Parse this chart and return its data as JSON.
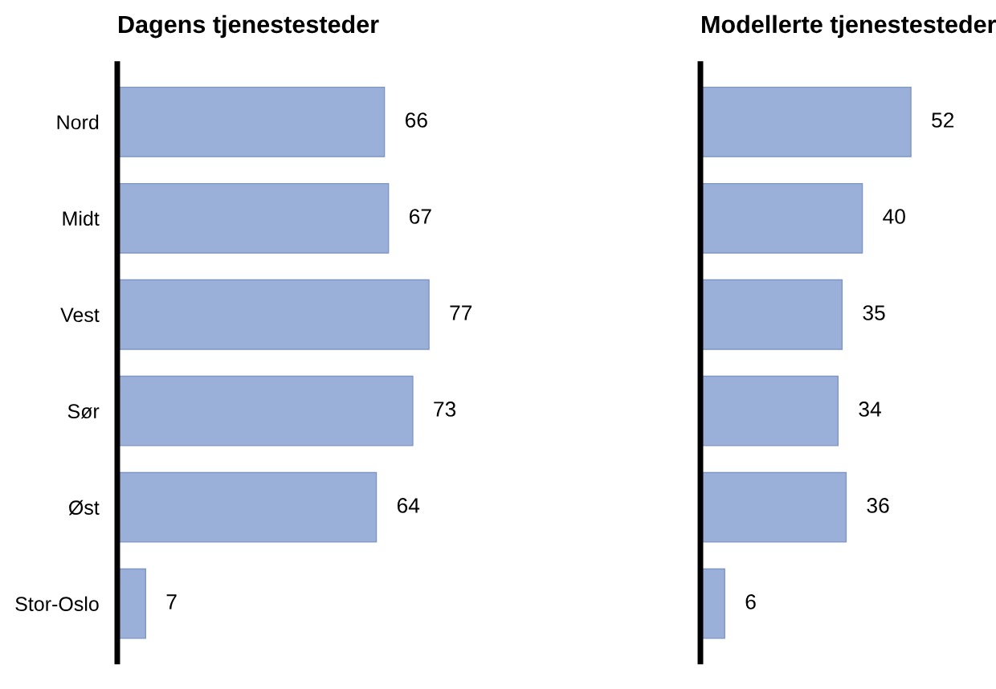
{
  "chart_data": [
    {
      "type": "bar",
      "orientation": "horizontal",
      "title": "Dagens tjenestesteder",
      "categories": [
        "Nord",
        "Midt",
        "Vest",
        "Sør",
        "Øst",
        "Stor-Oslo"
      ],
      "values": [
        66,
        67,
        77,
        73,
        64,
        7
      ],
      "color": "#9bb0d9",
      "data_labels": true,
      "tick_labels": "y"
    },
    {
      "type": "bar",
      "orientation": "horizontal",
      "title": "Modellerte tjenestesteder",
      "categories": [
        null,
        null,
        null,
        null,
        null,
        null
      ],
      "values": [
        52,
        40,
        35,
        34,
        36,
        6
      ],
      "color": "#9bb0d9",
      "data_labels": true,
      "tick_labels": false
    }
  ]
}
